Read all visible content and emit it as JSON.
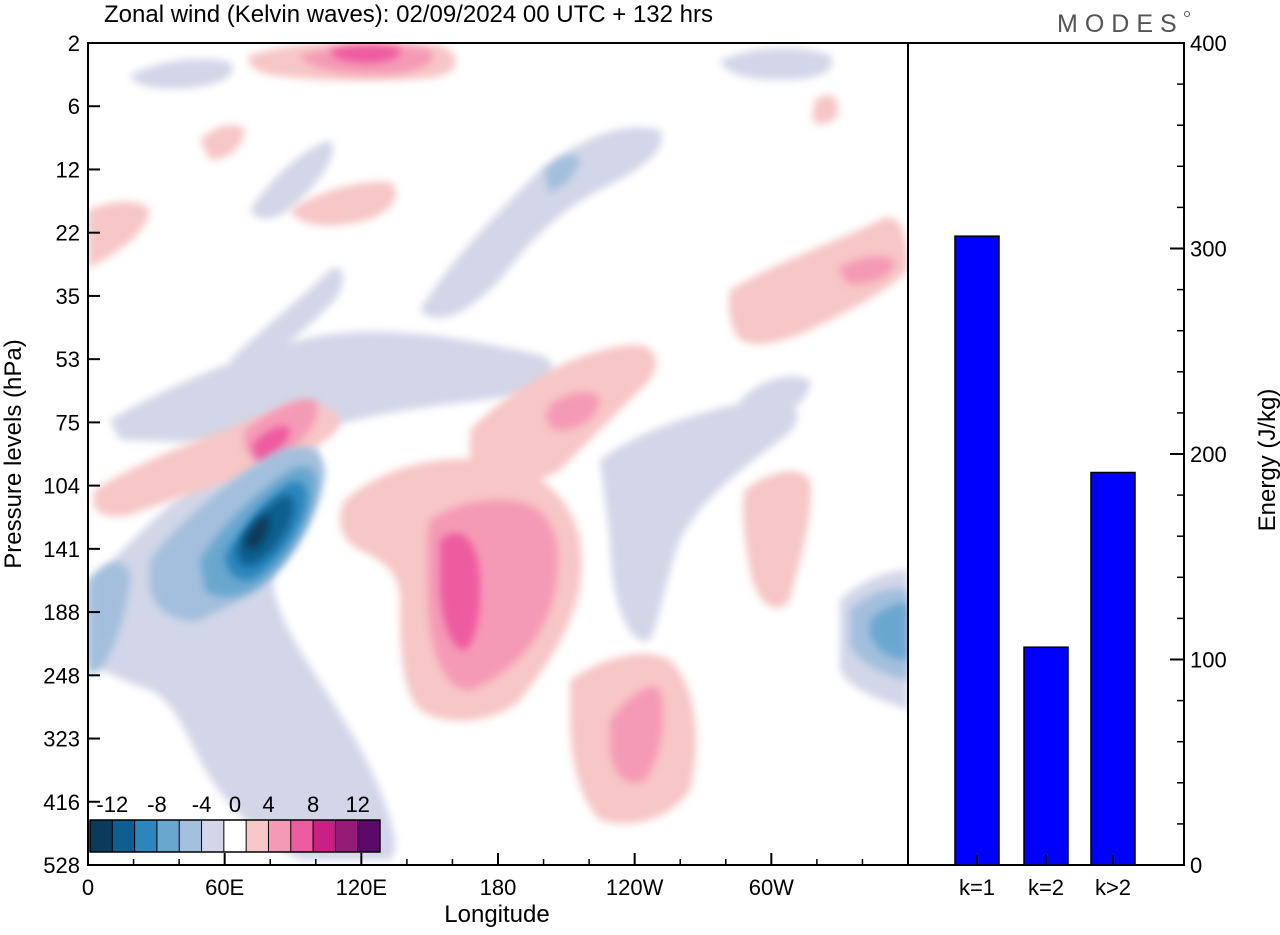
{
  "title": "Zonal wind (Kelvin waves):  02/09/2024  00 UTC  + 132 hrs",
  "logo_text": "MODES",
  "colors": {
    "neg6": "#0c3a5a",
    "neg5": "#0e5f8f",
    "neg4": "#2a86bd",
    "neg3": "#6aa7cf",
    "neg2": "#a3bfdd",
    "neg1": "#d2d6e8",
    "zero": "#ffffff",
    "pos1": "#f7c6c6",
    "pos2": "#f59ab6",
    "pos3": "#ee5ba0",
    "pos4": "#cc1f86",
    "pos5": "#961a78",
    "pos6": "#5a0b6a",
    "bar": "#0000ff"
  },
  "chart_data": [
    {
      "type": "heatmap",
      "title": "Zonal wind (Kelvin waves):  02/09/2024  00 UTC  + 132 hrs",
      "xlabel": "Longitude",
      "ylabel": "Pressure levels (hPa)",
      "x_ticks": [
        "0",
        "60E",
        "120E",
        "180",
        "120W",
        "60W"
      ],
      "x_tick_values": [
        0,
        60,
        120,
        180,
        240,
        300
      ],
      "xlim": [
        0,
        360
      ],
      "y_ticks": [
        "2",
        "6",
        "12",
        "22",
        "35",
        "53",
        "75",
        "104",
        "141",
        "188",
        "248",
        "323",
        "416",
        "528"
      ],
      "colorbar": {
        "labels": [
          "-12",
          "-8",
          "-4",
          "0",
          "4",
          "8",
          "12"
        ],
        "levels": [
          -14,
          -12,
          -10,
          -8,
          -6,
          -4,
          -2,
          2,
          4,
          6,
          8,
          10,
          12,
          14
        ],
        "colors": [
          "#0c3a5a",
          "#0e5f8f",
          "#2a86bd",
          "#6aa7cf",
          "#a3bfdd",
          "#d2d6e8",
          "#ffffff",
          "#f7c6c6",
          "#f59ab6",
          "#ee5ba0",
          "#cc1f86",
          "#961a78",
          "#5a0b6a"
        ]
      },
      "features": [
        {
          "lon": 67,
          "level": 141,
          "value": -14
        },
        {
          "lon": 93,
          "level": 104,
          "value": -12
        },
        {
          "lon": 162,
          "level": 188,
          "value": 9
        },
        {
          "lon": 185,
          "level": 188,
          "value": 6
        },
        {
          "lon": 76,
          "level": 75,
          "value": 8
        },
        {
          "lon": 125,
          "level": 2,
          "value": 8
        },
        {
          "lon": 237,
          "level": 323,
          "value": 6
        },
        {
          "lon": 198,
          "level": 75,
          "value": 5
        },
        {
          "lon": 344,
          "level": 22,
          "value": 5
        },
        {
          "lon": 360,
          "level": 188,
          "value": -7
        }
      ]
    },
    {
      "type": "bar",
      "categories": [
        "k=1",
        "k=2",
        "k>2"
      ],
      "values": [
        306,
        106,
        191
      ],
      "ylabel": "Energy (J/kg)",
      "ylim": [
        0,
        400
      ],
      "y_ticks": [
        "0",
        "100",
        "200",
        "300",
        "400"
      ]
    }
  ]
}
